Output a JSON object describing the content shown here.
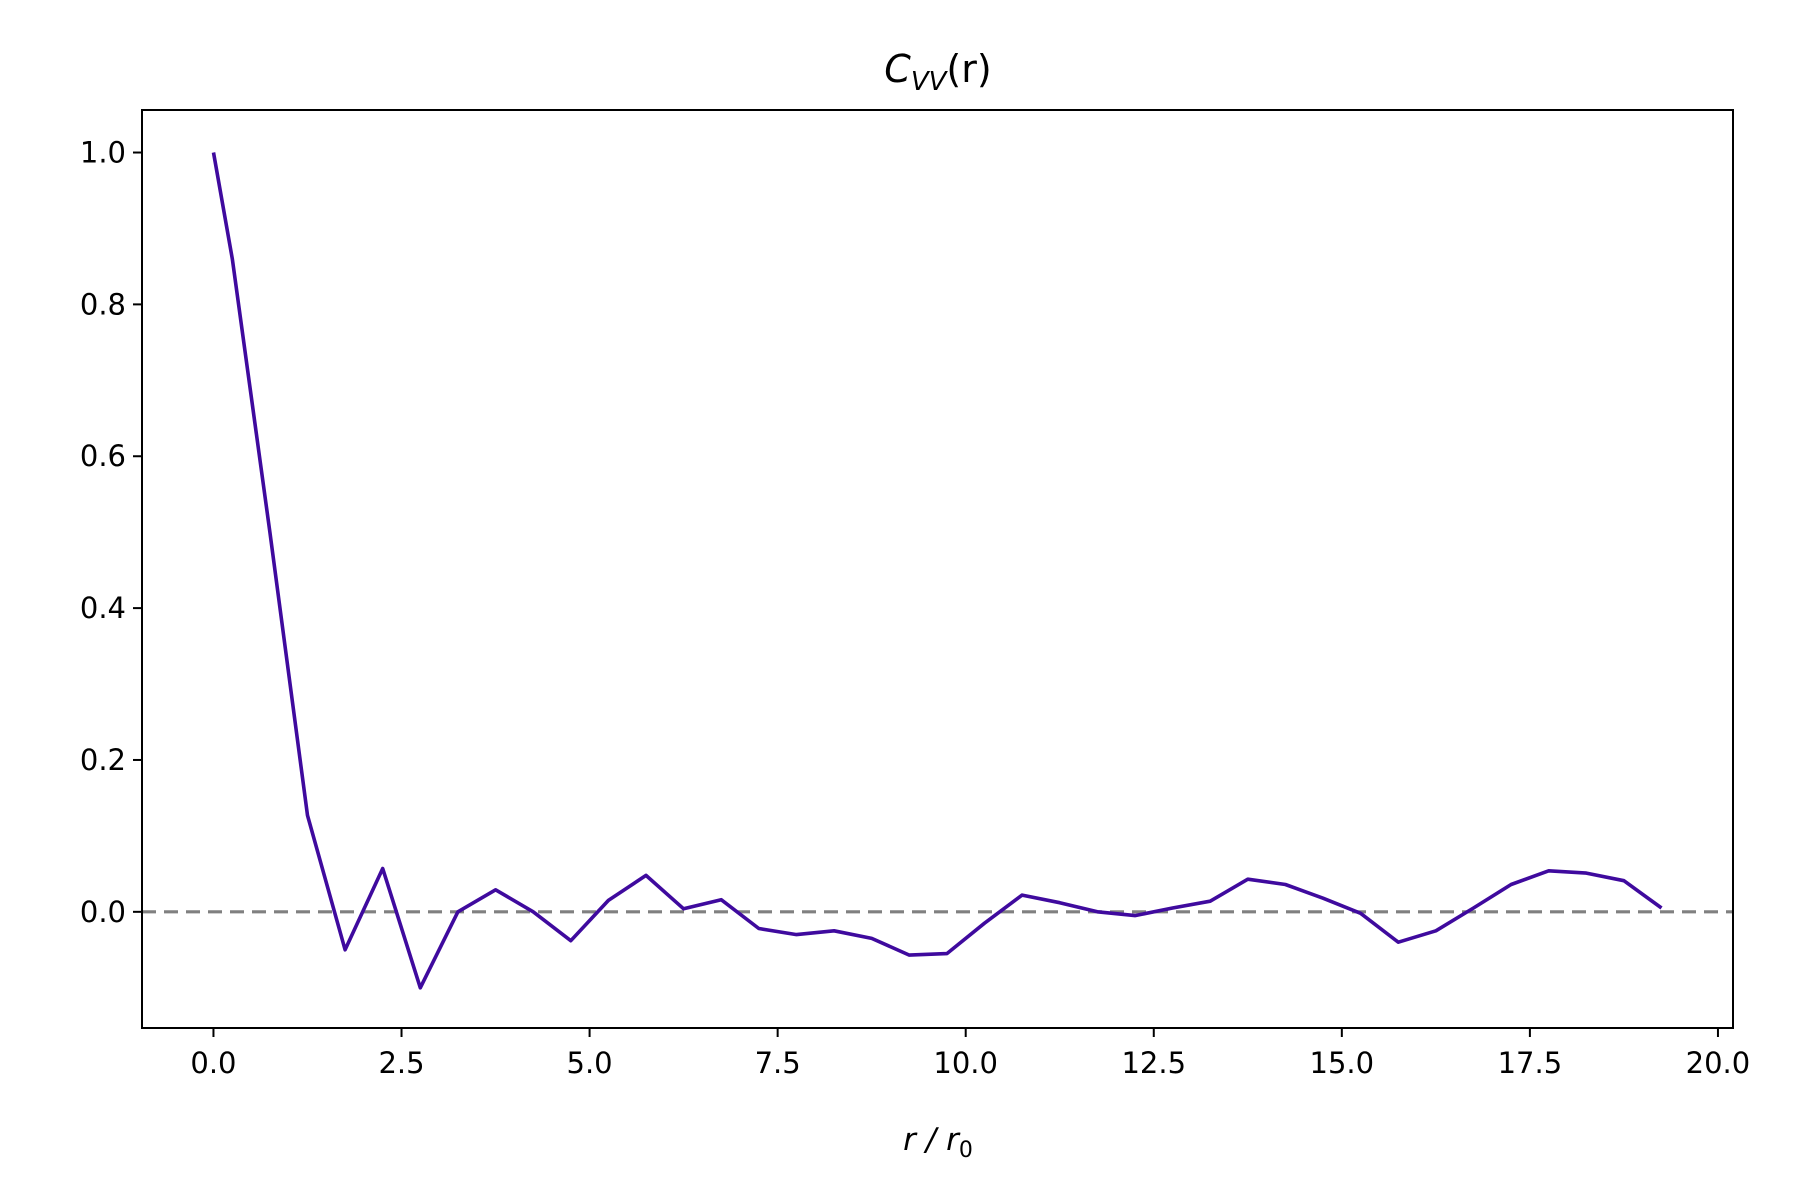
{
  "chart_data": {
    "type": "line",
    "title_main": "C",
    "title_sub": "VV",
    "title_tail": "(r)",
    "xlabel_main": "r / r",
    "xlabel_sub": "0",
    "ylabel": "",
    "xlim": [
      -0.95,
      20.2
    ],
    "ylim": [
      -0.153,
      1.056
    ],
    "x_ticks": [
      0.0,
      2.5,
      5.0,
      7.5,
      10.0,
      12.5,
      15.0,
      17.5,
      20.0
    ],
    "x_tick_labels": [
      "0.0",
      "2.5",
      "5.0",
      "7.5",
      "10.0",
      "12.5",
      "15.0",
      "17.5",
      "20.0"
    ],
    "y_ticks": [
      0.0,
      0.2,
      0.4,
      0.6,
      0.8,
      1.0
    ],
    "y_tick_labels": [
      "0.0",
      "0.2",
      "0.4",
      "0.6",
      "0.8",
      "1.0"
    ],
    "grid": false,
    "legend": "none",
    "reference_line": {
      "y": 0.0,
      "style": "dashed",
      "color": "#808080"
    },
    "series": [
      {
        "color": "#3f0a9e",
        "x": [
          0.0,
          0.25,
          0.75,
          1.25,
          1.75,
          2.25,
          2.75,
          3.25,
          3.75,
          4.25,
          4.75,
          5.25,
          5.75,
          6.25,
          6.75,
          7.25,
          7.75,
          8.25,
          8.75,
          9.25,
          9.75,
          10.25,
          10.75,
          11.25,
          11.75,
          12.25,
          12.75,
          13.25,
          13.75,
          14.25,
          14.75,
          15.25,
          15.75,
          16.25,
          16.75,
          17.25,
          17.75,
          18.25,
          18.75,
          19.25
        ],
        "y": [
          1.0,
          0.86,
          0.5,
          0.127,
          -0.05,
          0.057,
          -0.1,
          0.0,
          0.029,
          0.0,
          -0.038,
          0.015,
          0.048,
          0.004,
          0.016,
          -0.022,
          -0.03,
          -0.025,
          -0.035,
          -0.057,
          -0.055,
          -0.015,
          0.022,
          0.012,
          0.0,
          -0.005,
          0.005,
          0.014,
          0.043,
          0.036,
          0.018,
          -0.002,
          -0.04,
          -0.025,
          0.005,
          0.036,
          0.054,
          0.051,
          0.041,
          0.005
        ]
      }
    ]
  }
}
